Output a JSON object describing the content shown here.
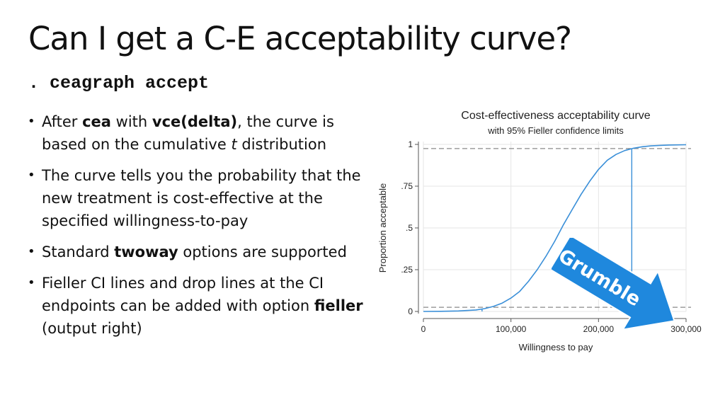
{
  "slide": {
    "title": "Can I get a C-E acceptability curve?",
    "command": ". ceagraph accept"
  },
  "bullets": [
    [
      {
        "t": "After "
      },
      {
        "t": "cea",
        "b": true
      },
      {
        "t": " with "
      },
      {
        "t": "vce(delta)",
        "b": true
      },
      {
        "t": ", the curve is based on the cumulative "
      },
      {
        "t": "t",
        "i": true
      },
      {
        "t": " distribution"
      }
    ],
    [
      {
        "t": "The curve tells you the probability that the new treatment is cost-effective at the specified willingness-to-pay"
      }
    ],
    [
      {
        "t": "Standard "
      },
      {
        "t": "twoway",
        "b": true
      },
      {
        "t": " options are supported"
      }
    ],
    [
      {
        "t": "Fieller CI lines and drop lines at the CI endpoints can be added with option "
      },
      {
        "t": "fieller",
        "b": true
      },
      {
        "t": " (output right)"
      }
    ]
  ],
  "callout": {
    "text": "Grumble",
    "fill": "#1f88dd",
    "text_color": "#ffffff"
  },
  "chart_data": {
    "type": "line",
    "title": "Cost-effectiveness acceptability curve",
    "subtitle": "with 95% Fieller confidence limits",
    "xlabel": "Willingness to pay",
    "ylabel": "Proportion acceptable",
    "xlim": [
      0,
      300000
    ],
    "ylim": [
      0,
      1
    ],
    "x_ticks": [
      0,
      100000,
      200000,
      300000
    ],
    "x_tick_labels": [
      "0",
      "100,000",
      "200,000",
      "300,000"
    ],
    "y_ticks": [
      0,
      0.25,
      0.5,
      0.75,
      1
    ],
    "y_tick_labels": [
      "0",
      ".25",
      ".5",
      ".75",
      "1"
    ],
    "grid": true,
    "line_color": "#3a8fd8",
    "series": [
      {
        "x": [
          0,
          20000,
          40000,
          60000,
          70000,
          80000,
          90000,
          100000,
          110000,
          120000,
          130000,
          140000,
          150000,
          160000,
          170000,
          180000,
          190000,
          200000,
          210000,
          220000,
          230000,
          240000,
          250000,
          260000,
          270000,
          280000,
          300000
        ],
        "y": [
          0.0,
          0.001,
          0.003,
          0.009,
          0.017,
          0.03,
          0.05,
          0.08,
          0.12,
          0.18,
          0.25,
          0.33,
          0.42,
          0.52,
          0.61,
          0.7,
          0.78,
          0.85,
          0.905,
          0.94,
          0.963,
          0.977,
          0.986,
          0.991,
          0.994,
          0.996,
          0.998
        ]
      }
    ],
    "reference_lines_y": [
      0.025,
      0.975
    ],
    "drop_lines_x": [
      67000,
      238000
    ]
  }
}
